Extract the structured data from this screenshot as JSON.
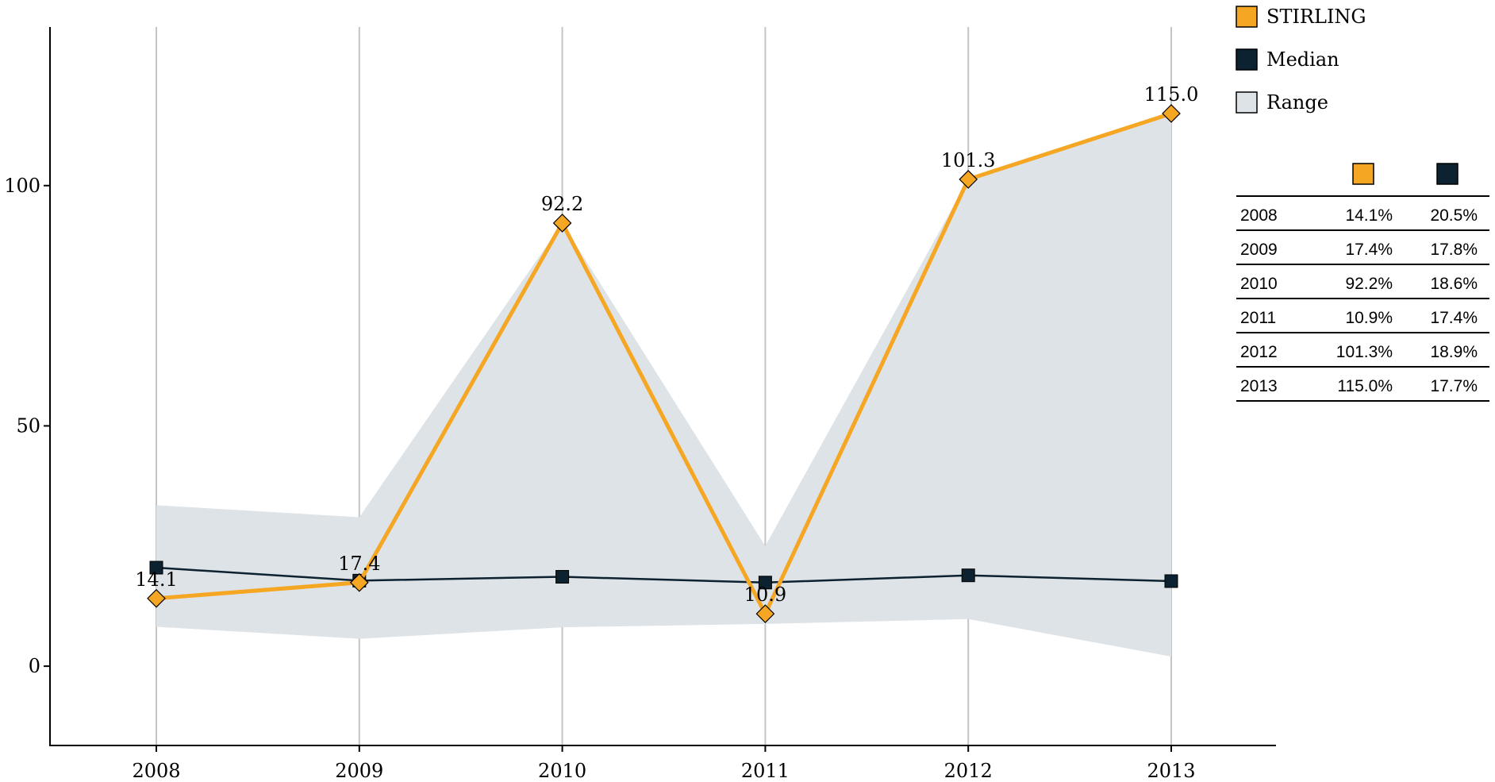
{
  "chart_data": {
    "type": "line",
    "x": [
      "2008",
      "2009",
      "2010",
      "2011",
      "2012",
      "2013"
    ],
    "series": [
      {
        "name": "STIRLING",
        "values": [
          14.1,
          17.4,
          92.2,
          10.9,
          101.3,
          115.0
        ],
        "data_labels": [
          "14.1",
          "17.4",
          "92.2",
          "10.9",
          "101.3",
          "115.0"
        ],
        "color": "#F5A623",
        "marker": "diamond"
      },
      {
        "name": "Median",
        "values": [
          20.5,
          17.8,
          18.6,
          17.4,
          18.9,
          17.7
        ],
        "color": "#0D2230",
        "marker": "square"
      }
    ],
    "range": {
      "name": "Range",
      "low": [
        8.2,
        5.7,
        8.1,
        8.8,
        9.8,
        2.0
      ],
      "high": [
        33.5,
        31.0,
        92.2,
        25.0,
        101.3,
        115.0
      ],
      "color": "#DEE3E8"
    },
    "y_ticks": [
      0,
      50,
      100
    ],
    "y_tick_labels": [
      "0",
      "50",
      "100"
    ],
    "ylim": [
      -16.5,
      133
    ],
    "grid": "vertical",
    "legend_position": "top-right",
    "legend": [
      {
        "label": "STIRLING",
        "color": "#F5A623"
      },
      {
        "label": "Median",
        "color": "#0D2230"
      },
      {
        "label": "Range",
        "color": "#DEE3E8"
      }
    ],
    "table": {
      "header_colors": [
        "#F5A623",
        "#0D2230"
      ],
      "rows": [
        {
          "year": "2008",
          "stirling": "14.1%",
          "median": "20.5%"
        },
        {
          "year": "2009",
          "stirling": "17.4%",
          "median": "17.8%"
        },
        {
          "year": "2010",
          "stirling": "92.2%",
          "median": "18.6%"
        },
        {
          "year": "2011",
          "stirling": "10.9%",
          "median": "17.4%"
        },
        {
          "year": "2012",
          "stirling": "101.3%",
          "median": "18.9%"
        },
        {
          "year": "2013",
          "stirling": "115.0%",
          "median": "17.7%"
        }
      ]
    }
  }
}
